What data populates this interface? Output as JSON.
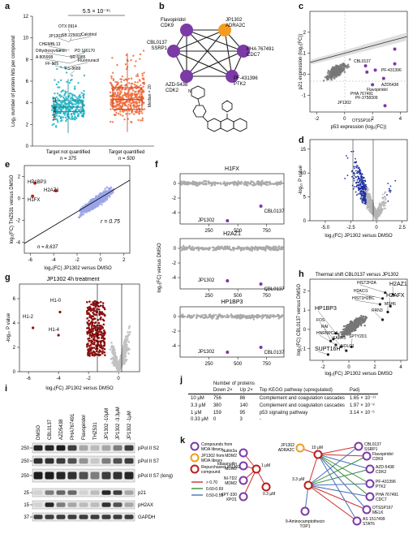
{
  "panel_labels": [
    "a",
    "b",
    "c",
    "d",
    "e",
    "f",
    "g",
    "h",
    "i",
    "j",
    "k"
  ],
  "panel_a": {
    "pvalue": "5.5 × 10⁻¹⁵",
    "ylabel": "Log₂ number of protein hits per compound",
    "median_left": "Median = 12",
    "median_right": "Median = 20",
    "cat_left": "Target not quantified",
    "cat_right": "Target quantified",
    "n_left": "n = 375",
    "n_right": "n = 500",
    "labels": [
      "JP1302",
      "OTX 0914",
      "SB 225002",
      "Calcitriol",
      "CHEMBL13",
      "Dihydroxyvitamin",
      "A 805908",
      "FF-505",
      "PD 166170",
      "Fluorouracil",
      "SR 6985",
      "PS-8689"
    ],
    "yticks": [
      "0",
      "2",
      "4",
      "6",
      "8",
      "10",
      "12"
    ],
    "ylim": [
      0,
      12
    ],
    "box_left": {
      "q1": 3.2,
      "median": 3.6,
      "q3": 4.2,
      "wlow": 1.2,
      "whigh": 6.2
    },
    "box_right": {
      "q1": 3.4,
      "median": 4.3,
      "q3": 5.4,
      "wlow": 1.3,
      "whigh": 8.6
    }
  },
  "panel_b": {
    "nodes": [
      {
        "name": "Flavopiridol\nCDK9",
        "color": "#7b3aa6"
      },
      {
        "name": "JP1302\nADRA2C",
        "color": "#f39c1f"
      },
      {
        "name": "PHA 767491\nCDC7",
        "color": "#7b3aa6"
      },
      {
        "name": "PF-431396\nPTK2",
        "color": "#7b3aa6"
      },
      {
        "name": "AZD-5438\nCDK2",
        "color": "#7b3aa6"
      },
      {
        "name": "CBL0137\nSSRP1",
        "color": "#7b3aa6"
      }
    ]
  },
  "panel_c": {
    "xlabel": "p53 expression (log₂(FC))",
    "ylabel": "p21 expression (log₂(FC))",
    "xticks": [
      "-2",
      "0",
      "2",
      "4"
    ],
    "yticks": [
      "-1",
      "0",
      "1",
      "2"
    ],
    "labels": [
      "PF-431396",
      "CBL0137",
      "AZD5438",
      "PHA 767491",
      "Flavopiridol",
      "PF-3758309",
      "JP1302",
      "OTSSP167"
    ]
  },
  "panel_d": {
    "xlabel": "log₂(FC) JP1302 versus DMSO",
    "ylabel": "-log₁₀ P value",
    "xticks": [
      "-5.0",
      "-2.5",
      "0",
      "2.5"
    ],
    "yticks": [
      "0",
      "5",
      "10",
      "15"
    ]
  },
  "panel_e": {
    "xlabel": "log₂(FC) JP1302 versus DMSO",
    "ylabel": "log₂(FC) THZ531 versus DMSO",
    "r": "r = 0.75",
    "n": "n = 8,637",
    "labels": [
      "HP1BP3",
      "H2AZ1",
      "H1FX"
    ],
    "xticks": [
      "-6",
      "-4",
      "-2",
      "0",
      "2"
    ],
    "yticks": [
      "-4",
      "-2",
      "0",
      "2"
    ]
  },
  "panel_f": {
    "ylabel": "log₂(FC) versus DMSO",
    "subplots": [
      {
        "title": "H1FX",
        "labels": [
          "JP1302",
          "CBL0137"
        ]
      },
      {
        "title": "H2AZ1",
        "labels": [
          "JP1302",
          "CBL0137"
        ]
      },
      {
        "title": "HP1BP3",
        "labels": [
          "JP1302",
          "CBL0137"
        ]
      }
    ],
    "xticks": [
      "250",
      "500",
      "750"
    ]
  },
  "panel_g": {
    "title": "JP1302 4h treatment",
    "xlabel": "log₂(FC) JP1302 versus DMSO",
    "ylabel": "-log₁₀ P value",
    "labels": [
      "H1-0",
      "H1-2",
      "H1-4"
    ],
    "xticks": [
      "-6",
      "-4",
      "-2",
      "0"
    ],
    "yticks": [
      "0",
      "2",
      "4",
      "6"
    ]
  },
  "panel_h": {
    "title": "Thermal shift CBL0137 versus JP1302",
    "xlabel": "log₂(FC) JP1302 versus DMSO",
    "ylabel": "log₂(FC) CBL0137 versus DMSO",
    "labels": [
      "HIST2H2A",
      "H2AZ1",
      "H2ACI1",
      "HIST1H2BC",
      "H2AFX",
      "MSH6",
      "RRN3",
      "HP1BP3",
      "FOS",
      "RAI",
      "HNRNPCL1",
      "SART3",
      "SPTY2D1",
      "NOLC1",
      "SUPT16H"
    ],
    "xticks": [
      "-2",
      "0",
      "2",
      "4"
    ],
    "yticks": [
      "-1",
      "0",
      "1",
      "2"
    ]
  },
  "panel_i": {
    "lanes": [
      "DMSO",
      "CBL0137",
      "AZD5438",
      "PHA767491",
      "Flavopiridol",
      "THZ531",
      "JP1302 -10μM",
      "JP1302 -3.3μM",
      "JP1302 -1μM"
    ],
    "markers": [
      "250",
      "250",
      "250",
      "25",
      "15",
      "37"
    ],
    "bands": [
      "pPol II S2",
      "pPol II S7",
      "pPol II S7 (long)",
      "p21",
      "pH2AX",
      "GAPDH"
    ]
  },
  "panel_j": {
    "header_group": "Number of proteins",
    "columns": [
      "",
      "Down 2×",
      "Up 2×",
      "Top KEGG pathway (upregulated)",
      "Padj"
    ],
    "rows": [
      [
        "10 μM",
        "756",
        "86",
        "Complement and coagulation cascades",
        "1.65 × 10⁻¹¹"
      ],
      [
        "3.3 μM",
        "380",
        "140",
        "Complement and coagulation cascades",
        "1.97 × 10⁻⁸"
      ],
      [
        "1 μM",
        "159",
        "95",
        "p53 signaling pathway",
        "3.14 × 10⁻⁶"
      ],
      [
        "0.33 μM",
        "0",
        "3",
        "-",
        ""
      ]
    ]
  },
  "panel_k": {
    "legend": [
      {
        "text": "Compounds from MOA library",
        "color": "#7b3aa6"
      },
      {
        "text": "JP1302 from MOA library",
        "color": "#f39c1f"
      },
      {
        "text": "Repurchased JP1302 compound",
        "color": "#b81d1d"
      }
    ],
    "edge_legend": [
      {
        "text": "> 0.70",
        "color": "#d03030"
      },
      {
        "text": "0.60-0.69",
        "color": "#3a8c3a"
      },
      {
        "text": "0.50-0.59",
        "color": "#4a70b8"
      }
    ],
    "left_nodes": [
      "Nutlin3a\nMDM2",
      "Idasanutlin\nMDM2",
      "NI-TD2\nMDM2",
      "KPT-330\nXPO1"
    ],
    "conc": [
      "1 μM",
      "0.3 μM",
      "10 μM",
      "3.3 μM"
    ],
    "jp_label": "JP1302\nADRA2C",
    "right_nodes": [
      "CBL0137\nSSRP1",
      "Flavopiridol\nCDK9",
      "AZD-5438\nCDK2",
      "PF-431396\nPTK2",
      "PHA 767491\nCDC7",
      "OTSSP167\nMELK",
      "AS 1517499\nSTAT6"
    ],
    "bottom_node": "9-Aminocamptothecin\nTOP1"
  }
}
